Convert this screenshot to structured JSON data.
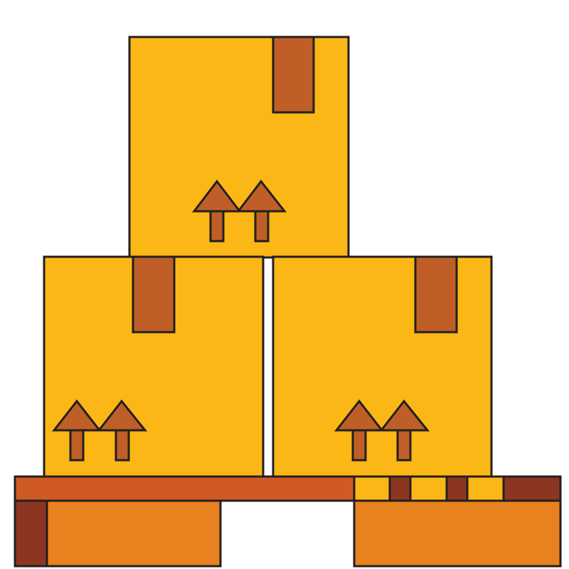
{
  "scene": {
    "description_name": "boxes-on-pallet-illustration"
  },
  "colors": {
    "background": "#FFFFFF",
    "box_fill": "#FBB716",
    "tape_fill": "#BF5F27",
    "arrow_fill": "#BF5F27",
    "outline": "#231F20",
    "pallet_top": "#D05A24",
    "pallet_dark": "#8C3520",
    "pallet_block": "#E8821F",
    "pallet_slot": "#FBB716"
  },
  "icons": {
    "box": "cardboard-box-icon",
    "arrow": "this-side-up-arrow-icon",
    "pallet": "wooden-pallet-icon"
  }
}
